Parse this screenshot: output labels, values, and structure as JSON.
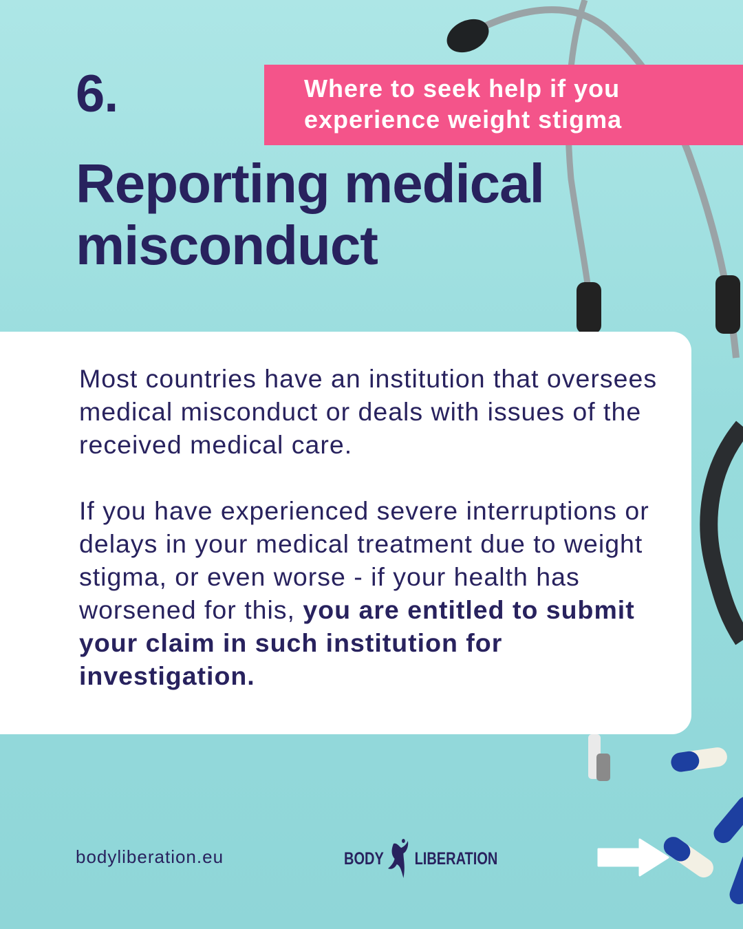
{
  "slide_number": "6.",
  "banner": {
    "text": "Where to seek help if you experience weight stigma",
    "color": "#f4548a"
  },
  "title": "Reporting medical misconduct",
  "card": {
    "paragraph1": "Most countries have an institution that oversees medical misconduct or deals with issues of the received medical care.",
    "paragraph2_regular": "If you have experienced severe interruptions or delays in your medical treatment due to weight stigma, or even worse - if your health has worsened for this, ",
    "paragraph2_bold": "you are entitled to submit your claim in such institution for investigation."
  },
  "footer": {
    "url": "bodyliberation.eu",
    "logo_left": "BODY",
    "logo_right": "LIBERATION",
    "next_icon": "arrow-right-icon"
  },
  "colors": {
    "text": "#28225e",
    "background": "#98dcdd",
    "card": "#ffffff"
  }
}
